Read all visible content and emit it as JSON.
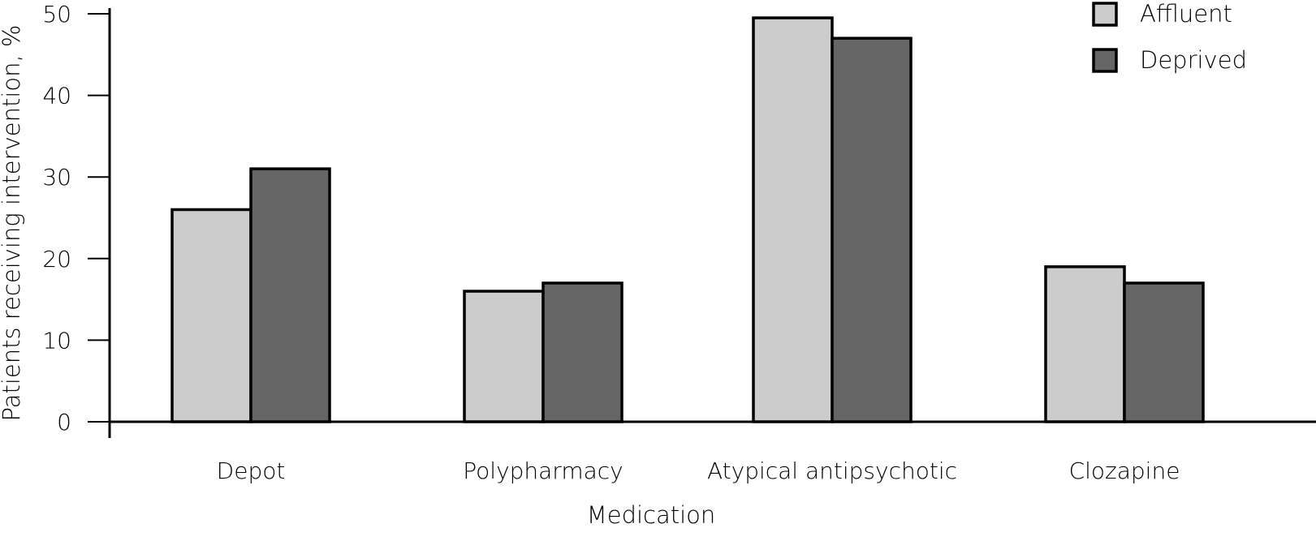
{
  "chart_data": {
    "type": "bar",
    "title": "",
    "xlabel": "Medication",
    "ylabel": "Patients receiving intervention, %",
    "categories": [
      "Depot",
      "Polypharmacy",
      "Atypical antipsychotic",
      "Clozapine"
    ],
    "series": [
      {
        "name": "Affluent",
        "color": "#cccccc",
        "values": [
          26,
          16,
          49.5,
          19
        ]
      },
      {
        "name": "Deprived",
        "color": "#666666",
        "values": [
          31,
          17,
          47,
          17
        ]
      }
    ],
    "ylim": [
      0,
      50
    ],
    "yticks": [
      "0",
      "10",
      "20",
      "30",
      "40",
      "50"
    ],
    "grid": false,
    "legend_position": "top-right",
    "bar_outline_color": "#000000"
  }
}
